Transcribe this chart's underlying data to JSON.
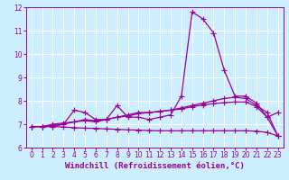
{
  "xlabel": "Windchill (Refroidissement éolien,°C)",
  "ylabel": "",
  "bg_color": "#cceeff",
  "line_color": "#990099",
  "grid_color": "#ffffff",
  "xlim": [
    -0.5,
    23.5
  ],
  "ylim": [
    6,
    12
  ],
  "yticks": [
    6,
    7,
    8,
    9,
    10,
    11,
    12
  ],
  "xticks": [
    0,
    1,
    2,
    3,
    4,
    5,
    6,
    7,
    8,
    9,
    10,
    11,
    12,
    13,
    14,
    15,
    16,
    17,
    18,
    19,
    20,
    21,
    22,
    23
  ],
  "series": [
    [
      6.9,
      6.9,
      6.9,
      7.0,
      7.6,
      7.5,
      7.2,
      7.2,
      7.8,
      7.3,
      7.3,
      7.2,
      7.3,
      7.4,
      8.2,
      11.8,
      11.5,
      10.9,
      9.3,
      8.2,
      8.2,
      7.9,
      7.3,
      7.5
    ],
    [
      6.9,
      6.9,
      6.95,
      7.0,
      7.1,
      7.15,
      7.1,
      7.2,
      7.3,
      7.35,
      7.45,
      7.5,
      7.55,
      7.6,
      7.7,
      7.8,
      7.9,
      8.0,
      8.1,
      8.15,
      8.1,
      7.8,
      7.5,
      6.5
    ],
    [
      6.9,
      6.9,
      6.9,
      6.88,
      6.85,
      6.83,
      6.82,
      6.8,
      6.78,
      6.76,
      6.75,
      6.73,
      6.72,
      6.72,
      6.72,
      6.72,
      6.72,
      6.72,
      6.72,
      6.72,
      6.72,
      6.7,
      6.65,
      6.5
    ],
    [
      6.9,
      6.9,
      7.0,
      7.05,
      7.1,
      7.2,
      7.15,
      7.2,
      7.3,
      7.4,
      7.5,
      7.5,
      7.55,
      7.6,
      7.65,
      7.75,
      7.82,
      7.88,
      7.92,
      7.95,
      7.95,
      7.75,
      7.3,
      6.5
    ]
  ],
  "marker": "+",
  "markersize": 4,
  "linewidth": 0.9,
  "tick_fontsize": 5.5,
  "label_fontsize": 6.5,
  "fig_bg": "#cceeff"
}
